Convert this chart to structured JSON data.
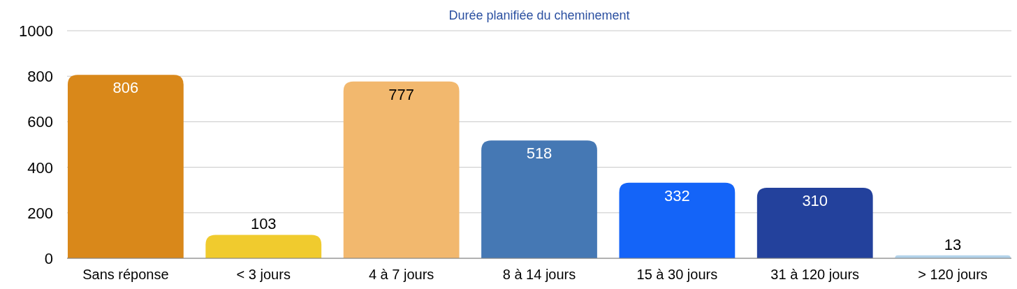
{
  "chart_data": {
    "type": "bar",
    "title": "Durée planifiée du cheminement",
    "categories": [
      "Sans réponse",
      "< 3 jours",
      "4 à 7 jours",
      "8 à 14 jours",
      "15 à 30 jours",
      "31 à 120 jours",
      "> 120 jours"
    ],
    "values": [
      806,
      103,
      777,
      518,
      332,
      310,
      13
    ],
    "colors": [
      "#d9881a",
      "#f0cb2e",
      "#f2b86e",
      "#4578b4",
      "#1464f8",
      "#23419c",
      "#b3d3ea"
    ],
    "ylim": [
      0,
      1000
    ],
    "yticks": [
      0,
      200,
      400,
      600,
      800,
      1000
    ],
    "grid": "y",
    "data_labels": true
  }
}
